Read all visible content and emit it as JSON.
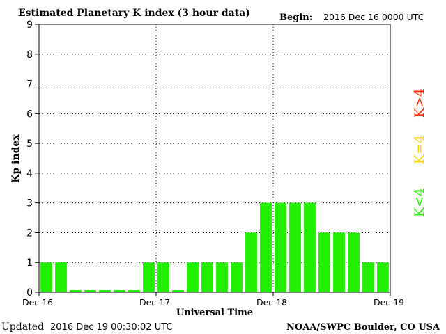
{
  "header": {
    "title": "Estimated Planetary K index (3 hour data)",
    "begin_label": "Begin:",
    "begin_value": "2016 Dec 16 0000 UTC"
  },
  "footer": {
    "updated_label": "Updated",
    "updated_value": "2016 Dec 19 00:30:02 UTC",
    "source": "NOAA/SWPC Boulder, CO USA"
  },
  "legend": [
    {
      "label": "K>4",
      "color": "#ff2a00"
    },
    {
      "label": "K=4",
      "color": "#ffd500"
    },
    {
      "label": "K<4",
      "color": "#22ee00"
    }
  ],
  "chart_data": {
    "type": "bar",
    "xlabel": "Universal Time",
    "ylabel": "Kp index",
    "ylim": [
      0,
      9
    ],
    "yticks": [
      0,
      1,
      2,
      3,
      4,
      5,
      6,
      7,
      8,
      9
    ],
    "xtick_labels": [
      "Dec 16",
      "Dec 17",
      "Dec 18",
      "Dec 19"
    ],
    "grid": true,
    "values": [
      1,
      1,
      0.07,
      0.07,
      0.07,
      0.07,
      0.07,
      1,
      1,
      0.07,
      1,
      1,
      1,
      1,
      2,
      3,
      3,
      3,
      3,
      2,
      2,
      2,
      1,
      1
    ],
    "bar_color": "#22ee00"
  }
}
